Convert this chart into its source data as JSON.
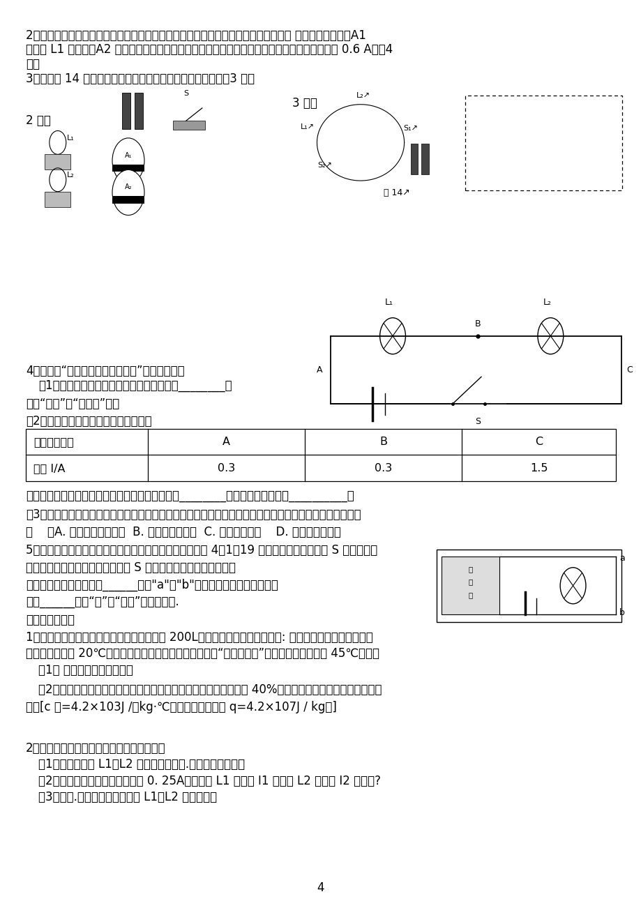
{
  "bg_color": "#ffffff",
  "text_color": "#000000",
  "page_number": "4",
  "line1": "2、现有两节电池，一个开关，导线若干，两个小灯泡，两个电流表，如图所示。要求 两只小灯泡并联，A1",
  "line2": "测通过 L1 的电流，A2 测干路的电流。请把实物按要求连成电路。（干路和支路中的电流均小于 0.6 A）（4",
  "line3": "分）",
  "line4": "3、根据图 14 中所示的实物连接图，在方框内画出电路图。（3 分）",
  "s4_l1": "4、如图是“探究串联电路电流特点”的实验电路图",
  "s4_l2": "（1）实验中，选择两个小灯泡的规格应该是________的",
  "s4_l3": "（填“相同”或“不相同”）。",
  "s4_l4": "（2）下表是某同学实验中的二组数据：",
  "tbl_h0": "电流表的位置",
  "tbl_h1": "A",
  "tbl_h2": "B",
  "tbl_h3": "C",
  "tbl_r0": "电流 I/A",
  "tbl_r1": "0.3",
  "tbl_r2": "0.3",
  "tbl_r3": "1.5",
  "s4_a1": "指出上述表格所记录的数据中，明显错误的数值是________，造成错误的原因是__________。",
  "s4_a2": "（3）实验中某同学发现两个串联的小灯泡中，一个发光，一个不发光，造成其中一个小灯泡不发光的原因是",
  "s4_a3": "（    ）A. 通过灯泡的电流小  B. 灯泡的灯丝断了  C. 灯丝的电阔小    D. 小灯泡靠近负极",
  "s5_l1": "5、恐怖分子在公共场所安装了定时炸弹，其引爆装置如图 4－1－19 所示，起爆前定时开关 S 是闭合的，",
  "s5_l2": "当设定的起爆时间一到，定时开关 S 就会自动断开，为使引爆装置",
  "s5_l3": "停止工作，拆弹专家应在______（填\"a\"或\"b\"）处剪断导线，拆除前起爆",
  "s5_l4": "器上______（填“有”或“没有”）电流通过.",
  "s5_l5": "六、计算题（）",
  "s6_l1": "1、小阳同学家的太阳能热水器，水筱容积是 200L。小阳进行了一次观察活动: 某天早上，他用温度计测得",
  "s6_l2": "自来水的温度为 20℃，然后给热水器水筱送满水，中午时“温度传感器”显示水筱中的水温为 45℃。求：",
  "s6_l3": "（1） 水吸收的热量是多少？",
  "s6_l4": "（2）如果水吸收的这些热量由燃烧煎气来提供，而煎气灶的效率为 40%，求至少需要燃烧煎气的质量是多",
  "s6_l5": "少？[c 水=4.2×103J /（kg·℃），煎气的热値为 q=4.2×107J / kg。]",
  "s7_l1": "2、认真观察分析电路图并解答下面的问题：",
  "s7_l2": "（1）如果要使灯 L1、L2 串联，则应闭合.断开哪几个开关。",
  "s7_l3": "（2）如果串联时电流表的示数为 0. 25A，则通过 L1 的电流 I1 和通过 L2 的电流 I2 是多少?",
  "s7_l4": "（3）闭合.断开哪几个开关，灯 L1、L2 构成并联。",
  "label_2ti": "2 题：",
  "label_3ti": "3 题：",
  "fig14_label": "图 14↗"
}
